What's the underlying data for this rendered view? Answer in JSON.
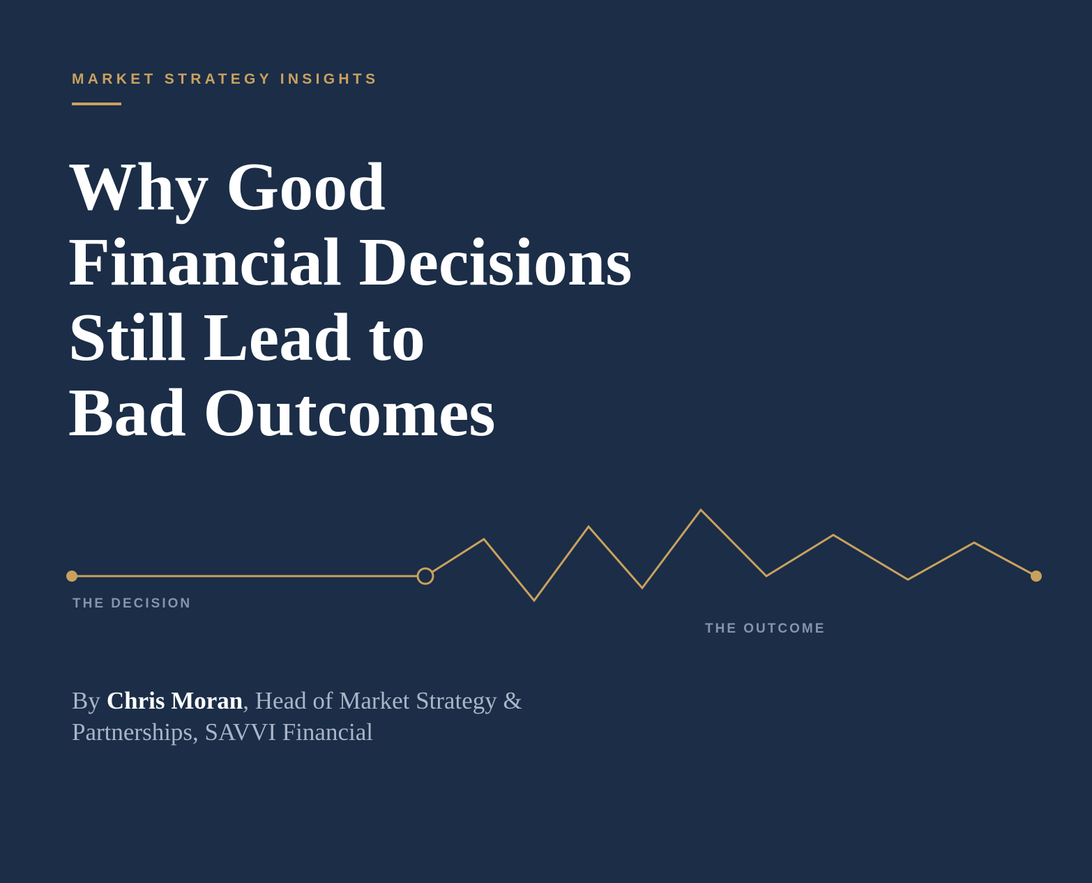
{
  "eyebrow": "MARKET STRATEGY INSIGHTS",
  "title": {
    "lines": [
      "Why Good",
      "Financial Decisions",
      "Still Lead to",
      "Bad Outcomes"
    ]
  },
  "diagram": {
    "decision_label": "THE DECISION",
    "outcome_label": "THE OUTCOME"
  },
  "byline": {
    "prefix": "By",
    "author": "Chris Moran",
    "rest": ", Head of Market Strategy & Partnerships, SAVVI Financial"
  }
}
